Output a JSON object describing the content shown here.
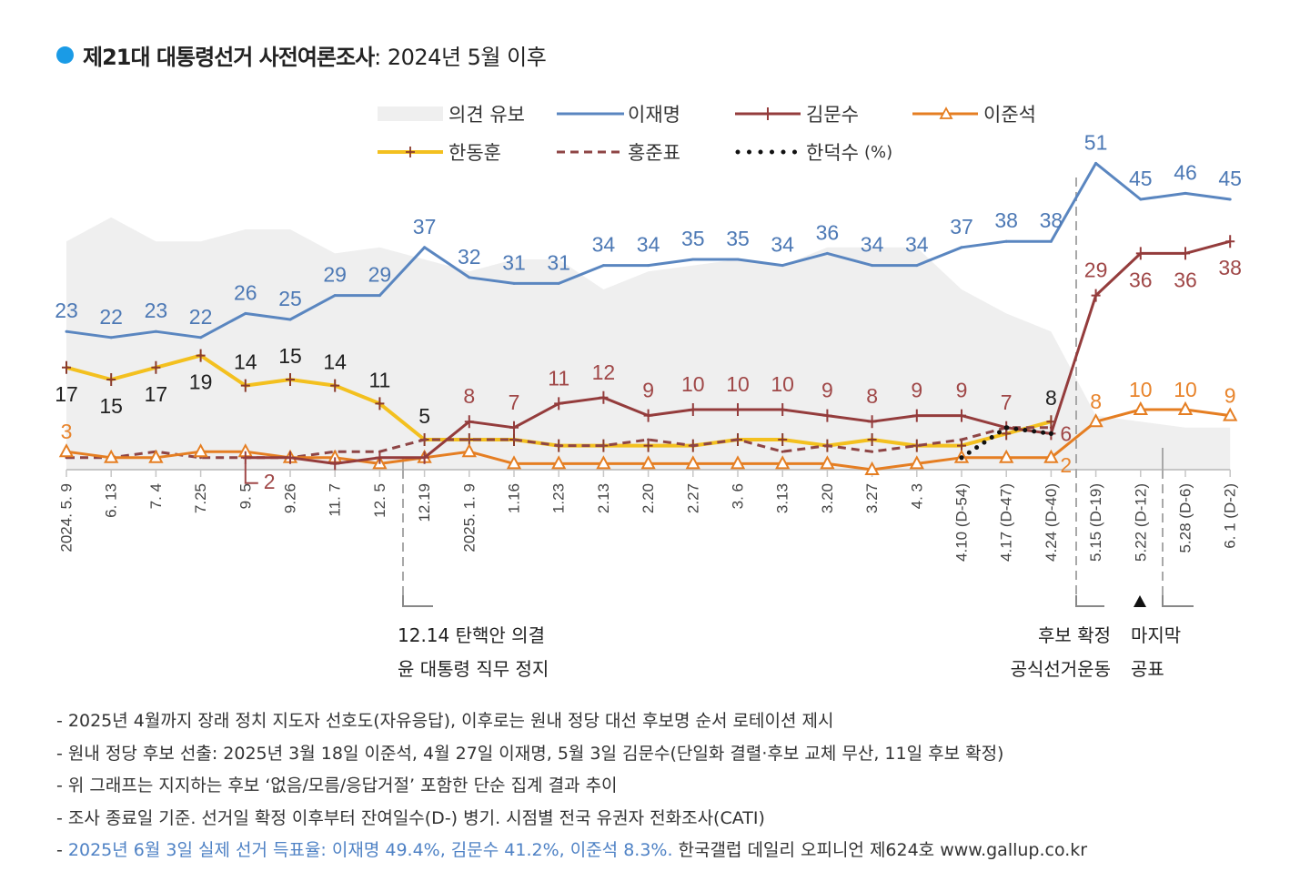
{
  "chart_data": {
    "type": "line",
    "title": {
      "main": "제21대 대통령선거 사전여론조사",
      "sub": ": 2024년 5월 이후"
    },
    "legend_position": "top",
    "legend_unit": "(%)",
    "grid": false,
    "x_labels": [
      "2024. 5. 9",
      "6. 13",
      "7. 4",
      "7.25",
      "9. 5",
      "9.26",
      "11. 7",
      "12. 5",
      "12.19",
      "2025. 1. 9",
      "1.16",
      "1.23",
      "2.13",
      "2.20",
      "2.27",
      "3. 6",
      "3.13",
      "3.20",
      "3.27",
      "4. 3",
      "4.10 (D-54)",
      "4.17 (D-47)",
      "4.24 (D-40)",
      "5.15 (D-19)",
      "5.22 (D-12)",
      "5.28 (D-6)",
      "6. 1 (D-2)"
    ],
    "area": {
      "name": "의견 유보",
      "color": "#efefef",
      "values": [
        38,
        42,
        38,
        38,
        40,
        40,
        36,
        37,
        35,
        33,
        35,
        35,
        30,
        33,
        34,
        35,
        34,
        37,
        37,
        37,
        30,
        26,
        23,
        9,
        8,
        7,
        7
      ]
    },
    "series": [
      {
        "name": "이재명",
        "color": "#5a86c0",
        "label_color": "#4d79b5",
        "values": [
          23,
          22,
          23,
          22,
          26,
          25,
          29,
          29,
          37,
          32,
          31,
          31,
          34,
          34,
          35,
          35,
          34,
          36,
          34,
          34,
          37,
          38,
          38,
          51,
          45,
          46,
          45
        ],
        "data_labels": [
          23,
          22,
          23,
          22,
          26,
          25,
          29,
          29,
          37,
          32,
          31,
          31,
          34,
          34,
          35,
          35,
          34,
          36,
          34,
          34,
          37,
          38,
          38,
          51,
          45,
          46,
          45
        ]
      },
      {
        "name": "김문수",
        "color": "#943c3c",
        "label_color": "#a04848",
        "values": [
          null,
          null,
          null,
          null,
          2,
          2,
          1,
          2,
          2,
          8,
          7,
          11,
          12,
          9,
          10,
          10,
          10,
          9,
          8,
          9,
          9,
          7,
          6,
          29,
          36,
          36,
          38
        ],
        "data_labels": [
          null,
          null,
          null,
          null,
          2,
          null,
          null,
          null,
          null,
          8,
          7,
          11,
          12,
          9,
          10,
          10,
          10,
          9,
          8,
          9,
          9,
          7,
          6,
          29,
          36,
          36,
          38
        ]
      },
      {
        "name": "이준석",
        "color": "#e57e22",
        "label_color": "#e8842c",
        "values": [
          3,
          2,
          2,
          3,
          3,
          2,
          2,
          1,
          2,
          3,
          1,
          1,
          1,
          1,
          1,
          1,
          1,
          1,
          0,
          1,
          2,
          2,
          2,
          8,
          10,
          10,
          9
        ],
        "data_labels": [
          3,
          null,
          null,
          null,
          null,
          null,
          null,
          null,
          null,
          null,
          null,
          null,
          null,
          null,
          null,
          null,
          null,
          null,
          null,
          null,
          null,
          null,
          2,
          8,
          10,
          10,
          9
        ]
      },
      {
        "name": "한동훈",
        "color": "#f3c01f",
        "marker_color": "#8a3b2b",
        "label_color": "#222222",
        "values": [
          17,
          15,
          17,
          19,
          14,
          15,
          14,
          11,
          5,
          5,
          5,
          4,
          4,
          4,
          4,
          5,
          5,
          4,
          5,
          4,
          4,
          6,
          8,
          null,
          null,
          null,
          null
        ],
        "data_labels": [
          17,
          15,
          17,
          19,
          14,
          15,
          14,
          11,
          5,
          null,
          null,
          null,
          null,
          null,
          null,
          null,
          null,
          null,
          null,
          null,
          null,
          null,
          8,
          null,
          null,
          null,
          null
        ]
      },
      {
        "name": "홍준표",
        "color": "#8e4545",
        "values": [
          2,
          2,
          3,
          2,
          2,
          2,
          3,
          3,
          5,
          5,
          5,
          4,
          4,
          5,
          4,
          5,
          3,
          4,
          3,
          4,
          5,
          7,
          7,
          null,
          null,
          null,
          null
        ]
      },
      {
        "name": "한덕수",
        "color": "#111111",
        "values": [
          null,
          null,
          null,
          null,
          null,
          null,
          null,
          null,
          null,
          null,
          null,
          null,
          null,
          null,
          null,
          null,
          null,
          null,
          null,
          null,
          2,
          7,
          6,
          null,
          null,
          null,
          null
        ]
      }
    ]
  },
  "annotations": {
    "impeachment": [
      "12.14 탄핵안 의결",
      "윤 대통령 직무 정지"
    ],
    "campaign": [
      "후보 확정",
      "공식선거운동"
    ],
    "last_release": [
      "마지막",
      "공표"
    ]
  },
  "notes": [
    "- 2025년 4월까지 장래 정치 지도자 선호도(자유응답), 이후로는 원내 정당 대선 후보명 순서 로테이션 제시",
    "- 원내 정당 후보 선출: 2025년 3월 18일 이준석, 4월 27일 이재명, 5월 3일 김문수(단일화 결렬·후보 교체 무산, 11일 후보 확정)",
    "- 위 그래프는 지지하는 후보 ‘없음/모름/응답거절’ 포함한 단순 집계 결과 추이",
    "- 조사 종료일 기준. 선거일 확정 이후부터 잔여일수(D-) 병기. 시점별 전국 유권자 전화조사(CATI)"
  ],
  "result_note": {
    "prefix": "- ",
    "highlight": "2025년 6월 3일 실제 선거 득표율: 이재명 49.4%, 김문수 41.2%, 이준석 8.3%.",
    "source": " 한국갤럽 데일리 오피니언 제624호 www.gallup.co.kr"
  },
  "colors": {
    "title_dot": "#1a9be6",
    "result_highlight": "#4f82c5",
    "separator": "#a8a8a8"
  }
}
